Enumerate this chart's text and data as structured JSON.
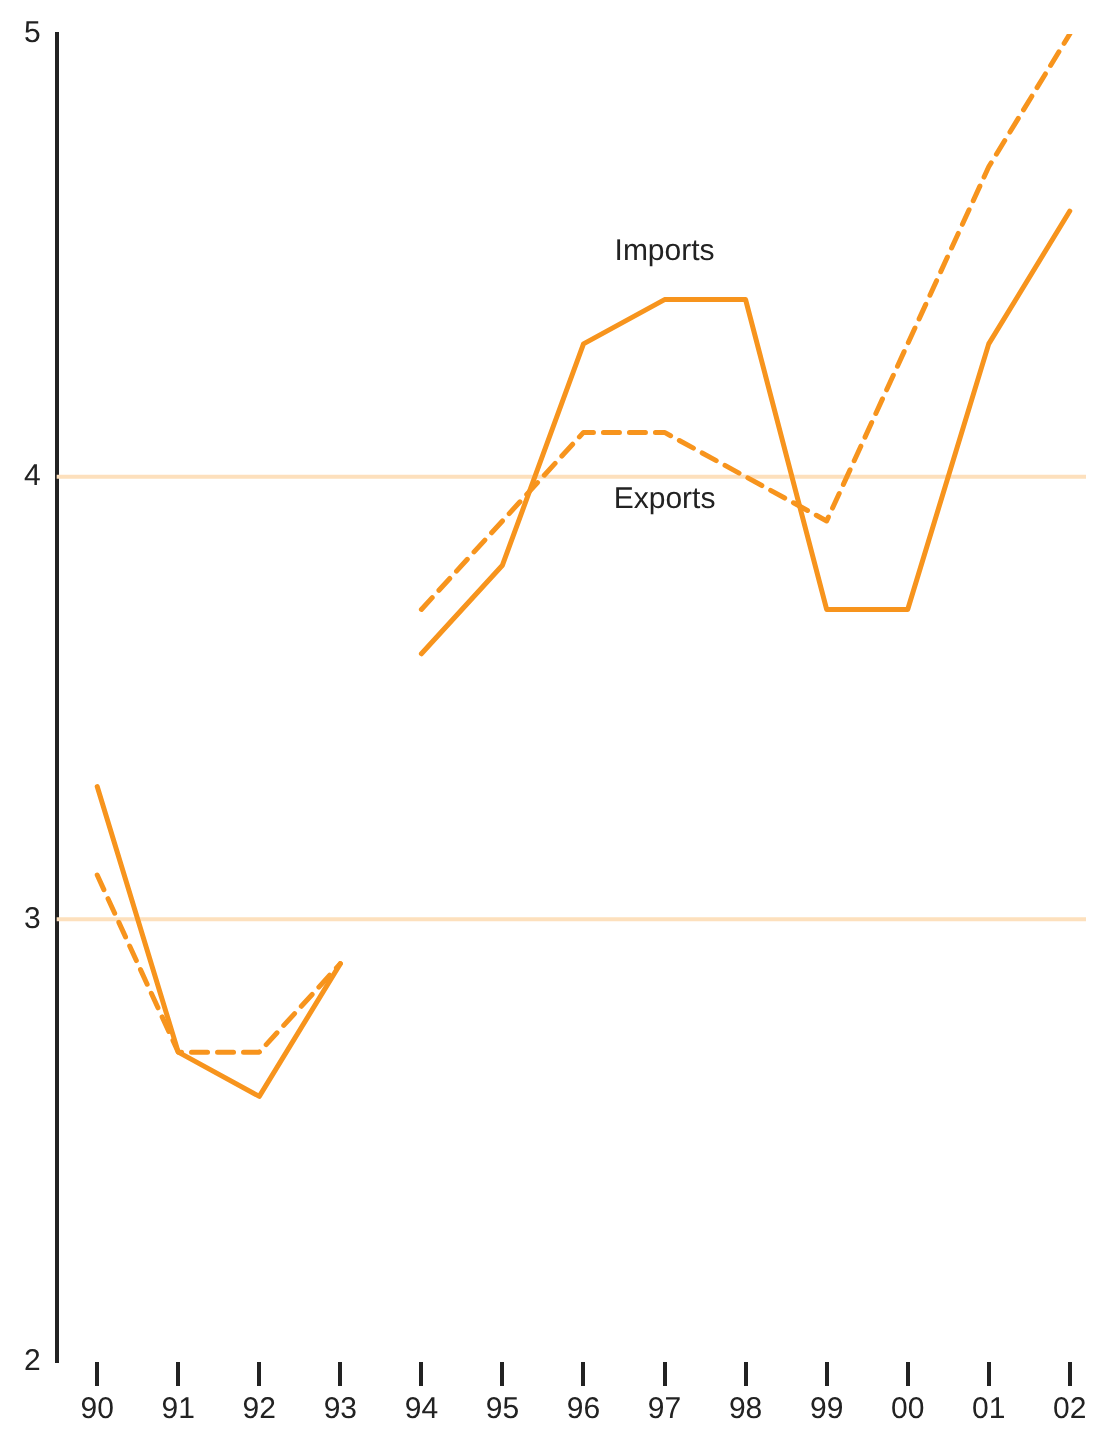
{
  "chart_data": {
    "type": "line",
    "x": [
      1990,
      1991,
      1992,
      1993,
      1993.5,
      1994,
      1995,
      1996,
      1997,
      1998,
      1999,
      2000,
      2001,
      2002
    ],
    "series": [
      {
        "name": "Imports",
        "color": "#f7941d",
        "line_style": "solid",
        "values": [
          3.3,
          2.7,
          2.6,
          2.9,
          null,
          3.6,
          3.8,
          4.3,
          4.4,
          4.4,
          3.7,
          3.7,
          4.3,
          4.6
        ]
      },
      {
        "name": "Exports",
        "color": "#f7941d",
        "line_style": "dashed",
        "values": [
          3.1,
          2.7,
          2.7,
          2.9,
          null,
          3.7,
          3.9,
          4.1,
          4.1,
          4.0,
          3.9,
          4.3,
          4.7,
          5.0
        ]
      }
    ],
    "xlim": [
      1989.5,
      2002.2
    ],
    "xticks": [
      {
        "value": 1990,
        "label": "90"
      },
      {
        "value": 1991,
        "label": "91"
      },
      {
        "value": 1992,
        "label": "92"
      },
      {
        "value": 1993,
        "label": "93"
      },
      {
        "value": 1994,
        "label": "94"
      },
      {
        "value": 1995,
        "label": "95"
      },
      {
        "value": 1996,
        "label": "96"
      },
      {
        "value": 1997,
        "label": "97"
      },
      {
        "value": 1998,
        "label": "98"
      },
      {
        "value": 1999,
        "label": "99"
      },
      {
        "value": 2000,
        "label": "00"
      },
      {
        "value": 2001,
        "label": "01"
      },
      {
        "value": 2002,
        "label": "02"
      }
    ],
    "ylim": [
      2,
      5
    ],
    "yticks": [
      2,
      3,
      4,
      5
    ],
    "ref_lines": [
      {
        "axis": "y",
        "value": 3,
        "color": "#fde0bd"
      },
      {
        "axis": "y",
        "value": 4,
        "color": "#fde0bd"
      }
    ],
    "grid": false,
    "legend": false,
    "marker": "none"
  }
}
